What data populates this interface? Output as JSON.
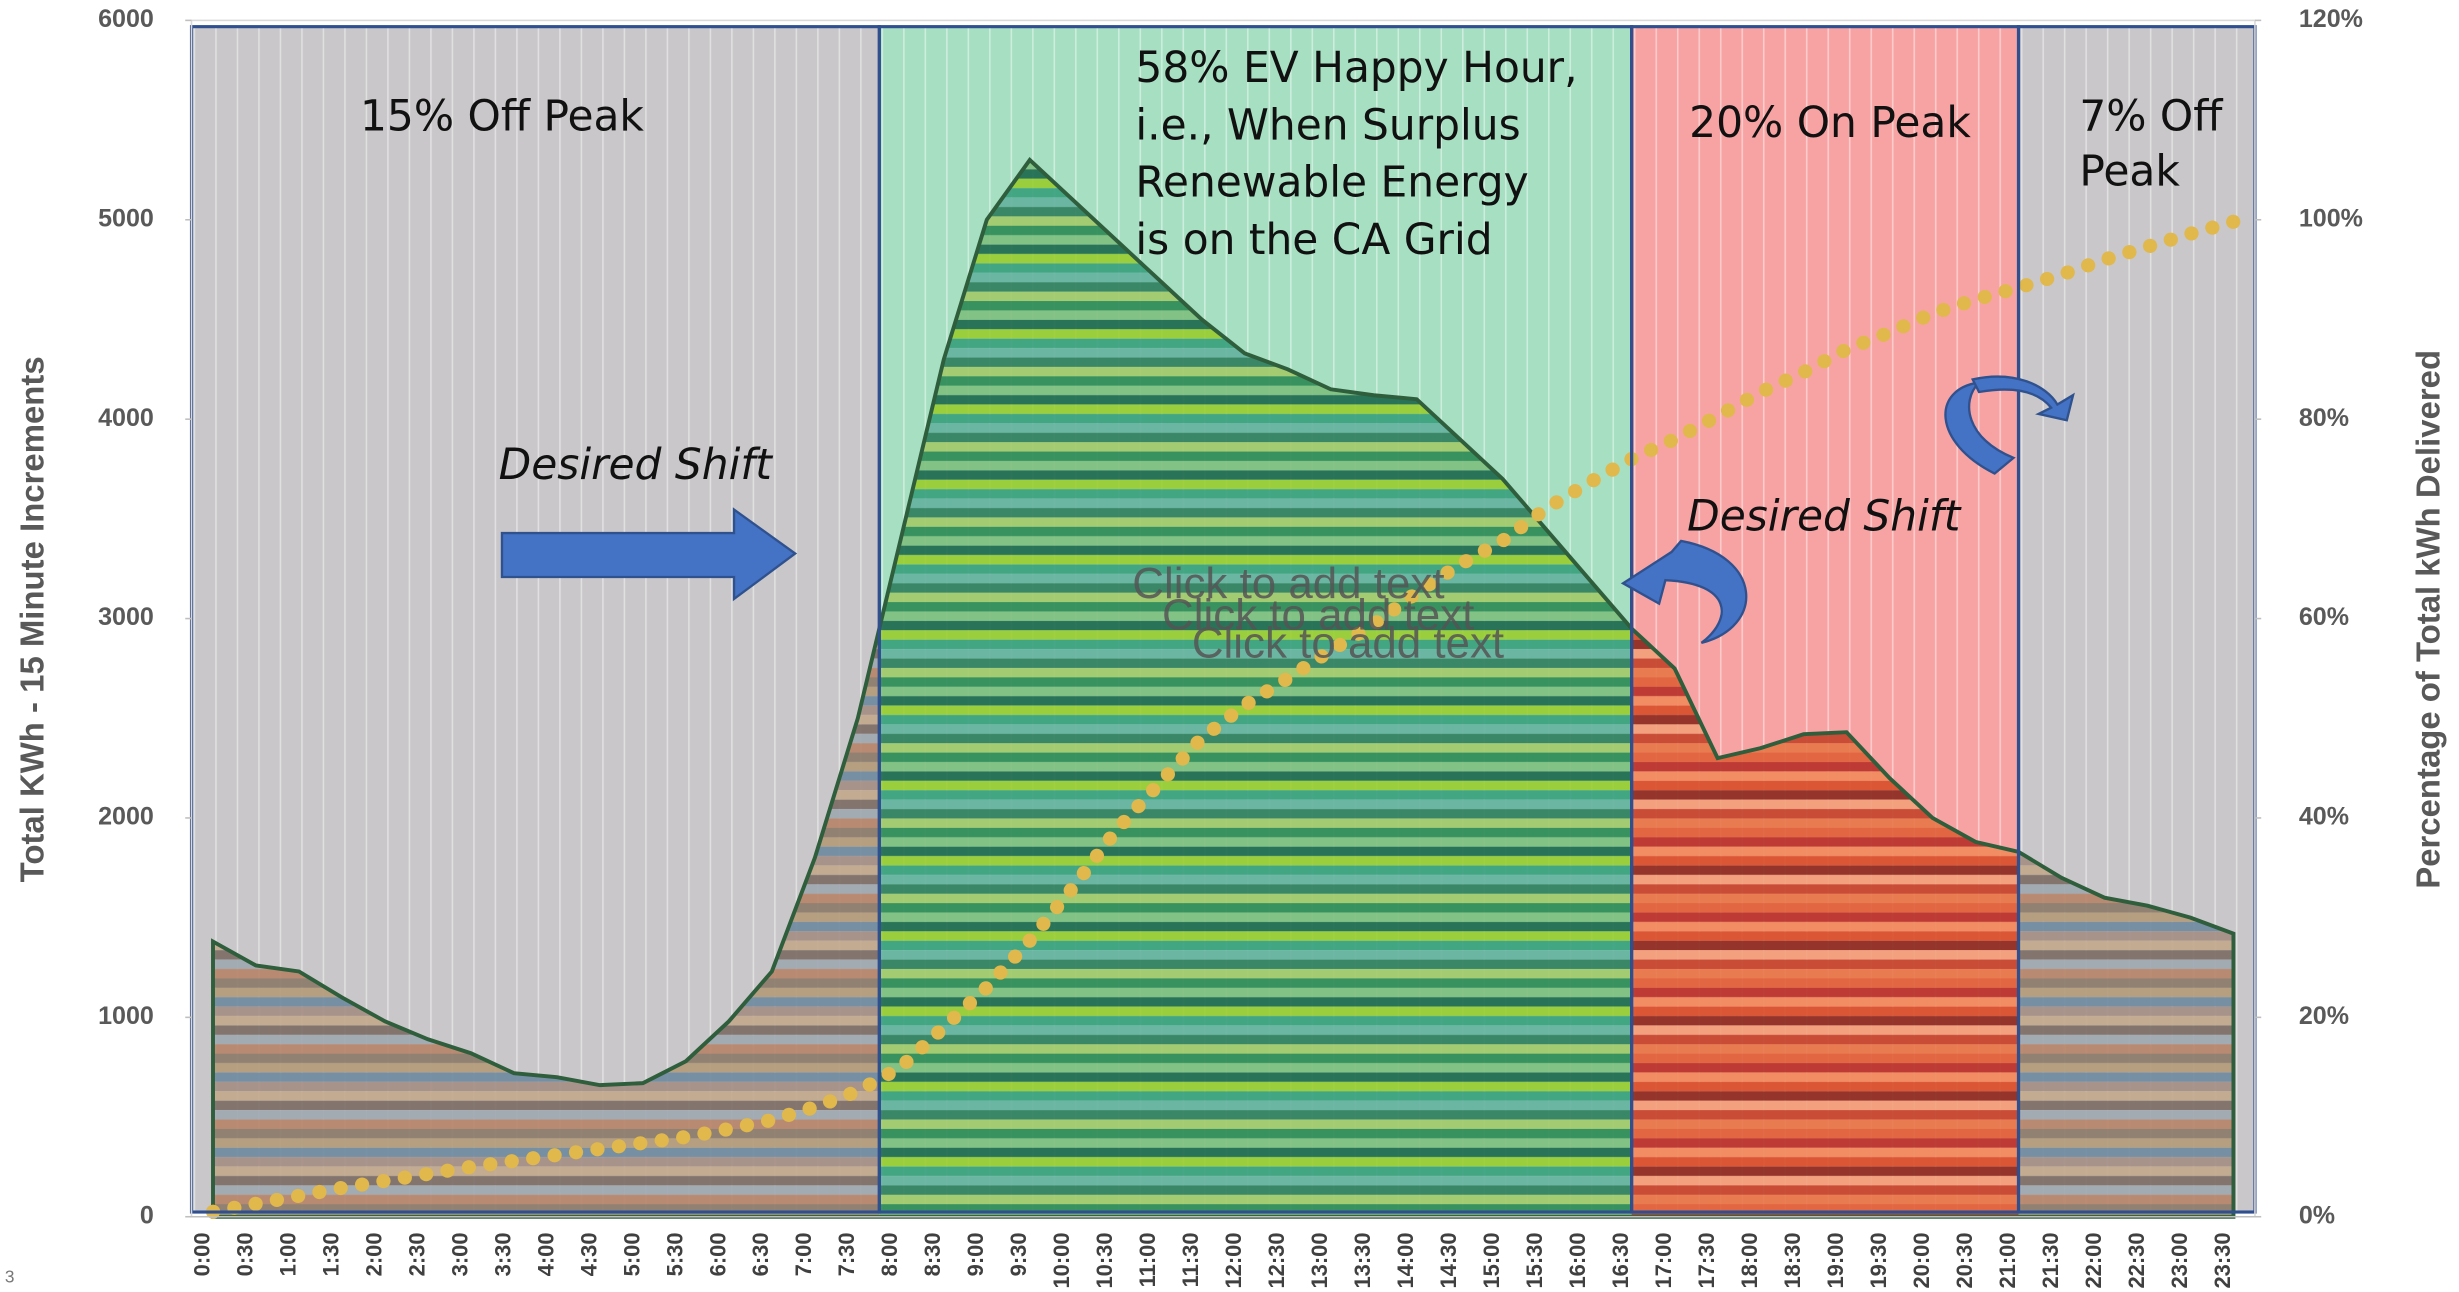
{
  "chart_data": {
    "type": "area",
    "categories": [
      "0:00",
      "0:30",
      "1:00",
      "1:30",
      "2:00",
      "2:30",
      "3:00",
      "3:30",
      "4:00",
      "4:30",
      "5:00",
      "5:30",
      "6:00",
      "6:30",
      "7:00",
      "7:30",
      "8:00",
      "8:30",
      "9:00",
      "9:30",
      "10:00",
      "10:30",
      "11:00",
      "11:30",
      "12:00",
      "12:30",
      "13:00",
      "13:30",
      "14:00",
      "14:30",
      "15:00",
      "15:30",
      "16:00",
      "16:30",
      "17:00",
      "17:30",
      "18:00",
      "18:30",
      "19:00",
      "19:30",
      "20:00",
      "20:30",
      "21:00",
      "21:30",
      "22:00",
      "22:30",
      "23:00",
      "23:30"
    ],
    "series": [
      {
        "values": [
          1380,
          1260,
          1230,
          1100,
          980,
          890,
          820,
          720,
          700,
          660,
          670,
          780,
          980,
          1230,
          1800,
          2500,
          3400,
          4300,
          5000,
          5300,
          5100,
          4900,
          4700,
          4500,
          4330,
          4250,
          4150,
          4120,
          4100,
          3900,
          3700,
          3450,
          3200,
          2950,
          2750,
          2300,
          2350,
          2420,
          2430,
          2200,
          2000,
          1880,
          1830,
          1700,
          1600,
          1560,
          1500,
          1420
        ],
        "color": "#2f5e3c"
      },
      {
        "values": [
          0.5,
          1.3,
          2.1,
          2.9,
          3.6,
          4.3,
          5,
          5.6,
          6.2,
          6.8,
          7.4,
          8,
          8.8,
          9.7,
          11,
          12.6,
          15,
          19,
          23,
          27.7,
          33,
          38.7,
          43.4,
          48,
          51.3,
          54,
          56.8,
          59.4,
          62.6,
          65.4,
          67.8,
          71,
          73.6,
          76,
          78,
          80.3,
          82.7,
          84.7,
          87,
          88.7,
          90.6,
          92,
          93.2,
          94.5,
          96,
          97.3,
          98.6,
          99.8
        ],
        "color": "#e0b84c",
        "axis": "y2"
      }
    ],
    "ylim": [
      0,
      6000
    ],
    "yticks": [
      0,
      1000,
      2000,
      3000,
      4000,
      5000,
      6000
    ],
    "y2lim": [
      0,
      120
    ],
    "y2ticks": [
      {
        "value": 0,
        "label": "0%"
      },
      {
        "value": 20,
        "label": "20%"
      },
      {
        "value": 40,
        "label": "40%"
      },
      {
        "value": 60,
        "label": "60%"
      },
      {
        "value": 80,
        "label": "80%"
      },
      {
        "value": 100,
        "label": "100%"
      },
      {
        "value": 120,
        "label": "120%"
      }
    ],
    "ylabel": "Total KWh - 15 Minute Increments",
    "y2label": "Percentage of Total kWh Delivered",
    "zones": [
      {
        "label": [
          "15% Off Peak"
        ],
        "start": null,
        "end": "8:00",
        "color": "#c9c7c9",
        "band_colors": [
          "#8c7b6b",
          "#b39b7a",
          "#6f8aa0",
          "#a58f86",
          "#c2a98c",
          "#7d6e66",
          "#9fa7b0",
          "#b8856a"
        ]
      },
      {
        "label": [
          "58% EV Happy Hour,",
          "i.e., When  Surplus",
          "Renewable Energy",
          "is on the CA Grid"
        ],
        "start": "8:00",
        "end": "16:45",
        "color": "#a6dfc1",
        "band_colors": [
          "#2e8b57",
          "#7fbf7f",
          "#1e6b4f",
          "#9acd32",
          "#3aa17e",
          "#66b2a0",
          "#2f7f5f",
          "#a3c96b"
        ]
      },
      {
        "label": [
          "20% On Peak"
        ],
        "start": "16:45",
        "end": "21:15",
        "color": "#f8a3a3",
        "band_colors": [
          "#e0613a",
          "#b8322a",
          "#f08a5d",
          "#d94f2b",
          "#8b2a1f",
          "#f2a07b",
          "#c4442c",
          "#e8774a"
        ]
      },
      {
        "label": [
          "7% Off",
          "Peak"
        ],
        "start": "21:15",
        "end": null,
        "color": "#c9c7c9",
        "band_colors": [
          "#8c7b6b",
          "#b39b7a",
          "#6f8aa0",
          "#a58f86",
          "#c2a98c",
          "#7d6e66",
          "#9fa7b0",
          "#b8856a"
        ]
      }
    ],
    "annotations": [
      "Desired Shift",
      "Desired Shift",
      "Click to add text",
      "Click to add text",
      "Click to add text"
    ],
    "page_number": "3"
  }
}
